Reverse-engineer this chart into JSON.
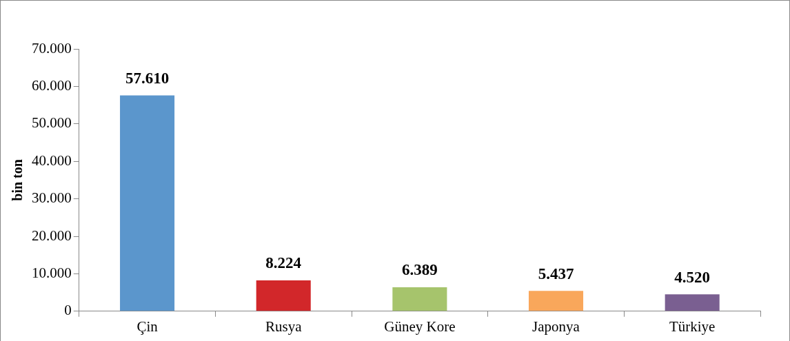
{
  "chart_data": {
    "type": "bar",
    "ylabel": "bin ton",
    "categories": [
      "Çin",
      "Rusya",
      "Güney Kore",
      "Japonya",
      "Türkiye"
    ],
    "values": [
      57610,
      8224,
      6389,
      5437,
      4520
    ],
    "colors": [
      "#5b96cc",
      "#d2272a",
      "#a6c46c",
      "#f9a75b",
      "#7a5f91"
    ],
    "value_labels": [
      "57.610",
      "8.224",
      "6.389",
      "5.437",
      "4.520"
    ],
    "ylim": [
      0,
      70000
    ],
    "yticks": [
      {
        "value": 0,
        "label": "0"
      },
      {
        "value": 10000,
        "label": "10.000"
      },
      {
        "value": 20000,
        "label": "20.000"
      },
      {
        "value": 30000,
        "label": "30.000"
      },
      {
        "value": 40000,
        "label": "40.000"
      },
      {
        "value": 50000,
        "label": "50.000"
      },
      {
        "value": 60000,
        "label": "60.000"
      },
      {
        "value": 70000,
        "label": "70.000"
      }
    ],
    "grid": false,
    "legend": false
  }
}
